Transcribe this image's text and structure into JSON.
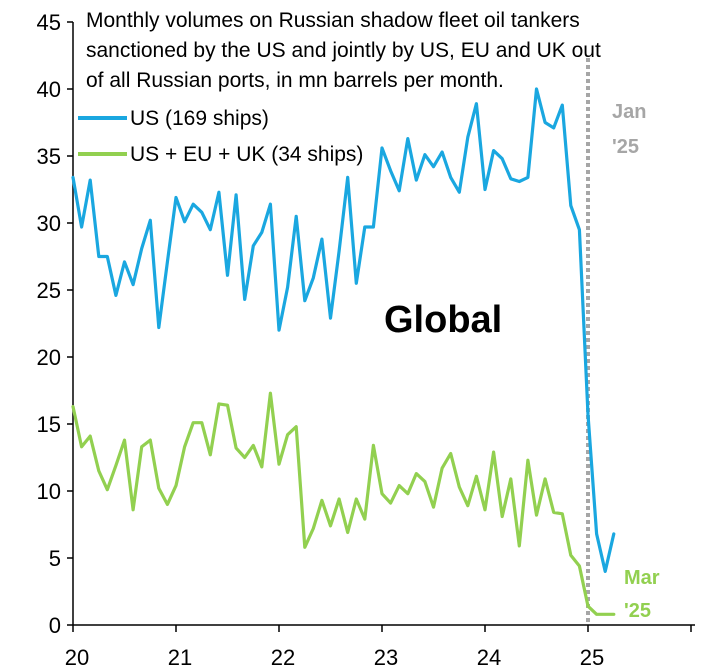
{
  "chart_data": {
    "type": "line",
    "title_lines": [
      "Monthly volumes on Russian shadow fleet oil tankers",
      "sanctioned by the US and jointly by US, EU and UK out",
      "of all Russian ports, in mn barrels per month."
    ],
    "region_label": "Global",
    "ylim": [
      0,
      45
    ],
    "yticks": [
      "0",
      "5",
      "10",
      "15",
      "20",
      "25",
      "30",
      "35",
      "40",
      "45"
    ],
    "xlim": [
      20,
      26
    ],
    "xticks": [
      "20",
      "21",
      "22",
      "23",
      "24",
      "25"
    ],
    "grid": false,
    "legend_position": "top-left",
    "series": [
      {
        "name": "US (169 ships)",
        "color": "#1aa7e0",
        "values": [
          33.4,
          29.7,
          33.2,
          27.5,
          27.5,
          24.6,
          27.1,
          25.4,
          28.1,
          30.2,
          22.2,
          27.1,
          31.9,
          30.1,
          31.4,
          30.8,
          29.5,
          32.3,
          26.1,
          32.1,
          24.3,
          28.3,
          29.3,
          31.4,
          22.0,
          25.2,
          30.5,
          24.2,
          25.9,
          28.8,
          22.9,
          27.9,
          33.4,
          25.5,
          29.7,
          29.7,
          35.6,
          33.9,
          32.4,
          36.3,
          33.2,
          35.1,
          34.2,
          35.3,
          33.4,
          32.3,
          36.4,
          38.9,
          32.5,
          35.4,
          34.8,
          33.3,
          33.1,
          33.4,
          40.0,
          37.5,
          37.1,
          38.8,
          31.3,
          29.5,
          15.7,
          6.8,
          4.0,
          6.8
        ],
        "end_label_line1": "Jan",
        "end_label_line2": "'25"
      },
      {
        "name": "US + EU + UK (34 ships)",
        "color": "#92d050",
        "values": [
          16.3,
          13.3,
          14.1,
          11.5,
          10.1,
          11.9,
          13.8,
          8.6,
          13.3,
          13.8,
          10.2,
          9.0,
          10.4,
          13.3,
          15.1,
          15.1,
          12.7,
          16.5,
          16.4,
          13.2,
          12.5,
          13.4,
          11.8,
          17.3,
          12.0,
          14.2,
          14.8,
          5.8,
          7.2,
          9.3,
          7.4,
          9.4,
          6.9,
          9.4,
          7.9,
          13.4,
          9.8,
          9.1,
          10.4,
          9.8,
          11.3,
          10.7,
          8.8,
          11.7,
          12.8,
          10.3,
          8.9,
          11.1,
          8.6,
          12.9,
          8.1,
          10.9,
          5.9,
          12.3,
          8.2,
          10.9,
          8.4,
          8.3,
          5.2,
          4.4,
          1.4,
          0.8,
          0.8,
          0.8
        ],
        "end_label_line1": "Mar",
        "end_label_line2": "'25"
      }
    ],
    "vline_x": 25.0,
    "vline_color": "#a6a6a6"
  }
}
